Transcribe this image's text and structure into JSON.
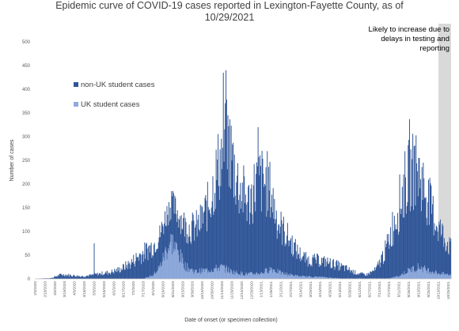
{
  "chart_data": {
    "type": "bar",
    "stacked": true,
    "title_line1": "Epidemic curve of COVID-19 cases reported in Lexington-Fayette County, as of",
    "title_line2": "10/29/2021",
    "xlabel": "Date of onset (or specimen collection)",
    "ylabel": "Number of cases",
    "ylim": [
      0,
      500
    ],
    "yticks": [
      0,
      50,
      100,
      150,
      200,
      250,
      300,
      350,
      400,
      450,
      500
    ],
    "grid": false,
    "legend_position": "upper-left",
    "xtick_labels": [
      "2/3/2020",
      "2/18/2020",
      "3/4/2020",
      "3/19/2020",
      "4/3/2020",
      "4/18/2020",
      "5/3/2020",
      "5/18/2020",
      "6/2/2020",
      "6/17/2020",
      "7/2/2020",
      "7/17/2020",
      "8/1/2020",
      "8/16/2020",
      "8/31/2020",
      "9/15/2020",
      "9/30/2020",
      "10/15/2020",
      "10/30/2020",
      "11/14/2020",
      "11/29/2020",
      "12/14/2020",
      "12/29/2020",
      "1/13/2021",
      "1/28/2021",
      "2/12/2021",
      "2/27/2021",
      "3/14/2021",
      "3/29/2021",
      "4/13/2021",
      "4/28/2021",
      "5/13/2021",
      "5/28/2021",
      "6/12/2021",
      "6/27/2021",
      "7/12/2021",
      "7/27/2021",
      "8/11/2021",
      "8/26/2021",
      "9/10/2021",
      "9/25/2021",
      "10/10/2021",
      "10/25/2021"
    ],
    "shaded_region_label": "Likely to increase due to delays in testing and reporting",
    "annotation_lines": [
      "Likely to increase due to",
      "delays in testing and",
      "reporting"
    ],
    "series": [
      {
        "name": "non-UK student cases",
        "color": "#2f5597",
        "profile": [
          [
            "2/3/2020",
            0
          ],
          [
            "2/28/2020",
            2
          ],
          [
            "3/14/2020",
            10
          ],
          [
            "3/29/2020",
            8
          ],
          [
            "4/13/2020",
            6
          ],
          [
            "4/28/2020",
            8
          ],
          [
            "5/13/2020",
            12
          ],
          [
            "5/28/2020",
            15
          ],
          [
            "6/12/2020",
            22
          ],
          [
            "6/27/2020",
            35
          ],
          [
            "7/12/2020",
            55
          ],
          [
            "7/27/2020",
            65
          ],
          [
            "8/11/2020",
            72
          ],
          [
            "8/26/2020",
            85
          ],
          [
            "9/10/2020",
            90
          ],
          [
            "9/25/2020",
            92
          ],
          [
            "10/10/2020",
            105
          ],
          [
            "10/25/2020",
            150
          ],
          [
            "11/9/2020",
            235
          ],
          [
            "11/24/2020",
            290
          ],
          [
            "12/9/2020",
            200
          ],
          [
            "12/24/2020",
            160
          ],
          [
            "1/8/2021",
            215
          ],
          [
            "1/23/2021",
            195
          ],
          [
            "2/7/2021",
            115
          ],
          [
            "2/22/2021",
            85
          ],
          [
            "3/9/2021",
            55
          ],
          [
            "3/24/2021",
            38
          ],
          [
            "4/8/2021",
            38
          ],
          [
            "4/23/2021",
            35
          ],
          [
            "5/8/2021",
            30
          ],
          [
            "5/23/2021",
            22
          ],
          [
            "6/7/2021",
            12
          ],
          [
            "6/22/2021",
            8
          ],
          [
            "7/7/2021",
            20
          ],
          [
            "7/22/2021",
            65
          ],
          [
            "8/6/2021",
            140
          ],
          [
            "8/21/2021",
            205
          ],
          [
            "9/5/2021",
            230
          ],
          [
            "9/20/2021",
            180
          ],
          [
            "10/5/2021",
            120
          ],
          [
            "10/20/2021",
            80
          ],
          [
            "10/29/2021",
            60
          ]
        ]
      },
      {
        "name": "UK student cases",
        "color": "#8faadc",
        "profile": [
          [
            "2/3/2020",
            0
          ],
          [
            "7/17/2020",
            0
          ],
          [
            "8/1/2020",
            8
          ],
          [
            "8/11/2020",
            25
          ],
          [
            "8/21/2020",
            60
          ],
          [
            "8/29/2020",
            80
          ],
          [
            "9/8/2020",
            55
          ],
          [
            "9/20/2020",
            25
          ],
          [
            "10/5/2020",
            15
          ],
          [
            "10/30/2020",
            20
          ],
          [
            "11/14/2020",
            25
          ],
          [
            "11/29/2020",
            15
          ],
          [
            "12/20/2020",
            10
          ],
          [
            "1/13/2021",
            12
          ],
          [
            "1/28/2021",
            22
          ],
          [
            "2/12/2021",
            12
          ],
          [
            "3/14/2021",
            5
          ],
          [
            "4/13/2021",
            4
          ],
          [
            "5/13/2021",
            1
          ],
          [
            "7/27/2021",
            1
          ],
          [
            "8/11/2021",
            6
          ],
          [
            "8/26/2021",
            18
          ],
          [
            "9/10/2021",
            25
          ],
          [
            "9/25/2021",
            18
          ],
          [
            "10/10/2021",
            12
          ],
          [
            "10/29/2021",
            8
          ]
        ]
      }
    ],
    "notable_peaks": [
      {
        "date": "11/20/2020",
        "value": 440
      },
      {
        "date": "11/16/2020",
        "value": 435
      },
      {
        "date": "8/29/2020",
        "value": 185
      },
      {
        "date": "1/8/2021",
        "value": 320
      },
      {
        "date": "5/3/2020",
        "value": 75
      },
      {
        "date": "8/27/2021",
        "value": 337
      },
      {
        "date": "9/3/2021",
        "value": 280
      }
    ]
  }
}
